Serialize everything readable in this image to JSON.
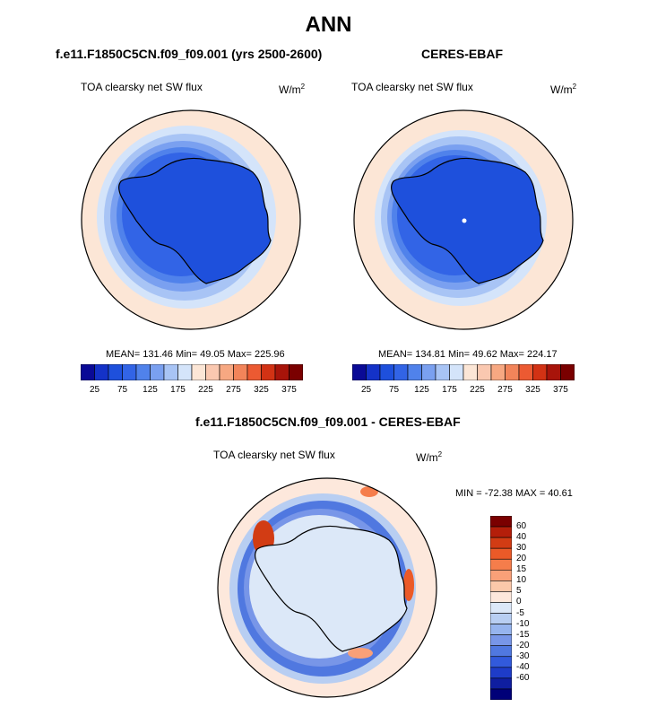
{
  "main_title": "ANN",
  "panels": [
    {
      "title": "f.e11.F1850C5CN.f09_f09.001 (yrs 2500-2600)",
      "var_label": "TOA clearsky net SW flux",
      "unit_base": "W/m",
      "unit_exp": "2",
      "stats": "MEAN= 131.46  Min=  49.05  Max= 225.96"
    },
    {
      "title": "CERES-EBAF",
      "var_label": "TOA clearsky net SW flux",
      "unit_base": "W/m",
      "unit_exp": "2",
      "stats": "MEAN= 134.81  Min=  49.62  Max= 224.17"
    },
    {
      "title": "f.e11.F1850C5CN.f09_f09.001 - CERES-EBAF",
      "var_label": "TOA clearsky net SW flux",
      "unit_base": "W/m",
      "unit_exp": "2",
      "stats": "MIN = -72.38 MAX =  40.61"
    }
  ],
  "colorbar_abs": {
    "colors": [
      "#0a0a96",
      "#1432c8",
      "#1e50dc",
      "#3264e6",
      "#5082eb",
      "#7aa0f0",
      "#a8c4f5",
      "#d4e4fa",
      "#fce6d6",
      "#fac8b0",
      "#f7a882",
      "#f2845a",
      "#ec5a32",
      "#d23214",
      "#a8140a",
      "#7a0000"
    ],
    "labels": [
      "25",
      "75",
      "125",
      "175",
      "225",
      "275",
      "325",
      "375"
    ]
  },
  "colorbar_diff": {
    "colors": [
      "#7a0000",
      "#b41e0a",
      "#d23c14",
      "#eb5a28",
      "#f57d4b",
      "#f9a078",
      "#fbc8aa",
      "#fde8dc",
      "#dce8f8",
      "#b8cef2",
      "#96b4ee",
      "#7896e8",
      "#5078e0",
      "#325adc",
      "#1e3cc8",
      "#0f1ea0",
      "#000078"
    ],
    "labels": [
      "60",
      "40",
      "30",
      "20",
      "15",
      "10",
      "5",
      "0",
      "-5",
      "-10",
      "-15",
      "-20",
      "-30",
      "-40",
      "-60"
    ]
  },
  "chart_data": [
    {
      "type": "heatmap",
      "title": "f.e11.F1850C5CN.f09_f09.001 (yrs 2500-2600)",
      "variable": "TOA clearsky net SW flux",
      "units": "W/m2",
      "projection": "south polar stereographic",
      "mean": 131.46,
      "min": 49.05,
      "max": 225.96,
      "colorbar_ticks": [
        25,
        75,
        125,
        175,
        225,
        275,
        325,
        375
      ]
    },
    {
      "type": "heatmap",
      "title": "CERES-EBAF",
      "variable": "TOA clearsky net SW flux",
      "units": "W/m2",
      "projection": "south polar stereographic",
      "mean": 134.81,
      "min": 49.62,
      "max": 224.17,
      "colorbar_ticks": [
        25,
        75,
        125,
        175,
        225,
        275,
        325,
        375
      ]
    },
    {
      "type": "heatmap",
      "title": "f.e11.F1850C5CN.f09_f09.001 - CERES-EBAF",
      "variable": "TOA clearsky net SW flux",
      "units": "W/m2",
      "projection": "south polar stereographic",
      "min": -72.38,
      "max": 40.61,
      "colorbar_ticks": [
        60,
        40,
        30,
        20,
        15,
        10,
        5,
        0,
        -5,
        -10,
        -15,
        -20,
        -30,
        -40,
        -60
      ]
    }
  ]
}
